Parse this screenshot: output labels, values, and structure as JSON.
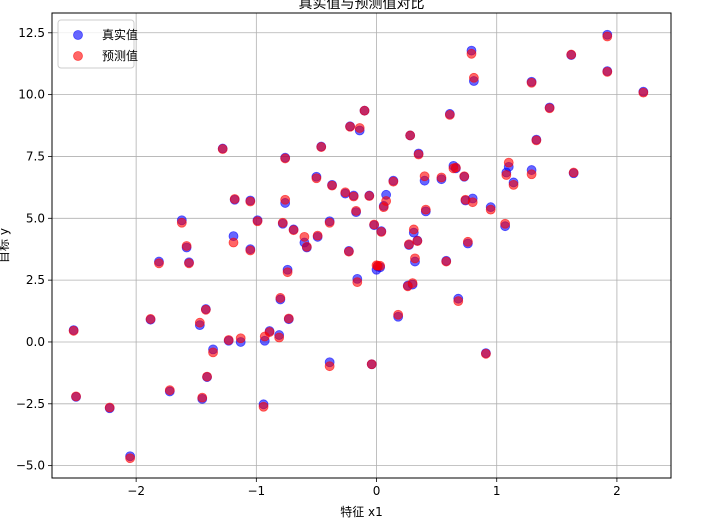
{
  "chart_data": {
    "type": "scatter",
    "title": "真实值与预测值对比",
    "xlabel": "特征 x1",
    "ylabel": "目标 y",
    "xlim": [
      -2.7,
      2.45
    ],
    "ylim": [
      -5.5,
      13.3
    ],
    "xticks": [
      -2,
      -1,
      0,
      1,
      2
    ],
    "yticks": [
      -5.0,
      -2.5,
      0.0,
      2.5,
      5.0,
      7.5,
      10.0,
      12.5
    ],
    "xtick_labels": [
      "−2",
      "−1",
      "0",
      "1",
      "2"
    ],
    "ytick_labels": [
      "−5.0",
      "−2.5",
      "0.0",
      "2.5",
      "5.0",
      "7.5",
      "10.0",
      "12.5"
    ],
    "grid": true,
    "legend_position": "top-left",
    "series": [
      {
        "name": "真实值",
        "color": "#0000ff",
        "alpha": 0.6,
        "points": [
          [
            -2.52,
            0.48
          ],
          [
            -2.5,
            -2.22
          ],
          [
            -2.22,
            -2.68
          ],
          [
            -2.05,
            -4.62
          ],
          [
            -1.88,
            0.9
          ],
          [
            -1.81,
            3.25
          ],
          [
            -1.72,
            -2.0
          ],
          [
            -1.62,
            4.92
          ],
          [
            -1.58,
            3.82
          ],
          [
            -1.56,
            3.22
          ],
          [
            -1.47,
            0.68
          ],
          [
            -1.45,
            -2.3
          ],
          [
            -1.42,
            1.33
          ],
          [
            -1.41,
            -1.42
          ],
          [
            -1.36,
            -0.3
          ],
          [
            -1.28,
            7.82
          ],
          [
            -1.23,
            0.05
          ],
          [
            -1.19,
            4.28
          ],
          [
            -1.18,
            5.75
          ],
          [
            -1.13,
            0.0
          ],
          [
            -1.05,
            5.72
          ],
          [
            -1.05,
            3.75
          ],
          [
            -0.99,
            4.92
          ],
          [
            -0.94,
            -2.52
          ],
          [
            -0.93,
            0.05
          ],
          [
            -0.89,
            0.44
          ],
          [
            -0.81,
            0.28
          ],
          [
            -0.8,
            1.72
          ],
          [
            -0.78,
            4.78
          ],
          [
            -0.76,
            5.62
          ],
          [
            -0.76,
            7.45
          ],
          [
            -0.74,
            2.92
          ],
          [
            -0.73,
            0.92
          ],
          [
            -0.69,
            4.55
          ],
          [
            -0.6,
            4.02
          ],
          [
            -0.58,
            3.82
          ],
          [
            -0.5,
            6.68
          ],
          [
            -0.49,
            4.25
          ],
          [
            -0.46,
            7.9
          ],
          [
            -0.39,
            4.88
          ],
          [
            -0.39,
            -0.82
          ],
          [
            -0.37,
            6.35
          ],
          [
            -0.26,
            6.0
          ],
          [
            -0.23,
            3.68
          ],
          [
            -0.22,
            8.72
          ],
          [
            -0.19,
            5.92
          ],
          [
            -0.17,
            5.25
          ],
          [
            -0.16,
            2.55
          ],
          [
            -0.14,
            8.55
          ],
          [
            -0.1,
            9.35
          ],
          [
            -0.06,
            5.92
          ],
          [
            -0.04,
            -0.9
          ],
          [
            -0.02,
            4.72
          ],
          [
            0.0,
            2.92
          ],
          [
            0.01,
            3.05
          ],
          [
            0.03,
            3.02
          ],
          [
            0.04,
            4.48
          ],
          [
            0.06,
            5.5
          ],
          [
            0.08,
            5.95
          ],
          [
            0.14,
            6.52
          ],
          [
            0.18,
            1.02
          ],
          [
            0.26,
            2.28
          ],
          [
            0.27,
            3.92
          ],
          [
            0.28,
            8.35
          ],
          [
            0.3,
            2.32
          ],
          [
            0.31,
            4.42
          ],
          [
            0.32,
            3.25
          ],
          [
            0.34,
            4.1
          ],
          [
            0.35,
            7.62
          ],
          [
            0.4,
            6.52
          ],
          [
            0.41,
            5.28
          ],
          [
            0.54,
            6.58
          ],
          [
            0.58,
            3.28
          ],
          [
            0.61,
            9.22
          ],
          [
            0.64,
            7.12
          ],
          [
            0.66,
            7.02
          ],
          [
            0.68,
            1.75
          ],
          [
            0.73,
            6.68
          ],
          [
            0.74,
            5.72
          ],
          [
            0.76,
            3.98
          ],
          [
            0.79,
            11.78
          ],
          [
            0.8,
            5.8
          ],
          [
            0.81,
            10.55
          ],
          [
            0.91,
            -0.45
          ],
          [
            0.95,
            5.45
          ],
          [
            1.07,
            4.68
          ],
          [
            1.08,
            6.85
          ],
          [
            1.1,
            7.08
          ],
          [
            1.14,
            6.45
          ],
          [
            1.29,
            10.52
          ],
          [
            1.29,
            6.95
          ],
          [
            1.33,
            8.18
          ],
          [
            1.44,
            9.48
          ],
          [
            1.62,
            11.6
          ],
          [
            1.64,
            6.82
          ],
          [
            1.92,
            12.42
          ],
          [
            1.92,
            10.95
          ],
          [
            2.22,
            10.12
          ]
        ]
      },
      {
        "name": "预测值",
        "color": "#ff0000",
        "alpha": 0.6,
        "points": [
          [
            -2.52,
            0.45
          ],
          [
            -2.5,
            -2.2
          ],
          [
            -2.22,
            -2.65
          ],
          [
            -2.05,
            -4.7
          ],
          [
            -1.88,
            0.93
          ],
          [
            -1.81,
            3.18
          ],
          [
            -1.72,
            -1.95
          ],
          [
            -1.62,
            4.82
          ],
          [
            -1.58,
            3.88
          ],
          [
            -1.56,
            3.18
          ],
          [
            -1.47,
            0.78
          ],
          [
            -1.45,
            -2.25
          ],
          [
            -1.42,
            1.3
          ],
          [
            -1.41,
            -1.4
          ],
          [
            -1.36,
            -0.42
          ],
          [
            -1.28,
            7.8
          ],
          [
            -1.23,
            0.08
          ],
          [
            -1.19,
            4.02
          ],
          [
            -1.18,
            5.78
          ],
          [
            -1.13,
            0.15
          ],
          [
            -1.05,
            5.68
          ],
          [
            -1.05,
            3.7
          ],
          [
            -0.99,
            4.88
          ],
          [
            -0.94,
            -2.62
          ],
          [
            -0.93,
            0.22
          ],
          [
            -0.89,
            0.4
          ],
          [
            -0.81,
            0.18
          ],
          [
            -0.8,
            1.78
          ],
          [
            -0.78,
            4.82
          ],
          [
            -0.76,
            5.75
          ],
          [
            -0.76,
            7.42
          ],
          [
            -0.74,
            2.82
          ],
          [
            -0.73,
            0.95
          ],
          [
            -0.69,
            4.52
          ],
          [
            -0.6,
            4.25
          ],
          [
            -0.58,
            3.85
          ],
          [
            -0.5,
            6.62
          ],
          [
            -0.49,
            4.3
          ],
          [
            -0.46,
            7.88
          ],
          [
            -0.39,
            4.82
          ],
          [
            -0.39,
            -0.98
          ],
          [
            -0.37,
            6.32
          ],
          [
            -0.26,
            6.05
          ],
          [
            -0.23,
            3.65
          ],
          [
            -0.22,
            8.7
          ],
          [
            -0.19,
            5.88
          ],
          [
            -0.17,
            5.3
          ],
          [
            -0.16,
            2.42
          ],
          [
            -0.14,
            8.65
          ],
          [
            -0.1,
            9.35
          ],
          [
            -0.06,
            5.9
          ],
          [
            -0.04,
            -0.9
          ],
          [
            -0.02,
            4.75
          ],
          [
            0.0,
            3.1
          ],
          [
            0.01,
            3.08
          ],
          [
            0.03,
            3.08
          ],
          [
            0.04,
            4.45
          ],
          [
            0.06,
            5.45
          ],
          [
            0.08,
            5.7
          ],
          [
            0.14,
            6.48
          ],
          [
            0.18,
            1.1
          ],
          [
            0.26,
            2.25
          ],
          [
            0.27,
            3.95
          ],
          [
            0.28,
            8.35
          ],
          [
            0.3,
            2.38
          ],
          [
            0.31,
            4.55
          ],
          [
            0.32,
            3.38
          ],
          [
            0.34,
            4.08
          ],
          [
            0.35,
            7.58
          ],
          [
            0.4,
            6.7
          ],
          [
            0.41,
            5.35
          ],
          [
            0.54,
            6.65
          ],
          [
            0.58,
            3.25
          ],
          [
            0.61,
            9.18
          ],
          [
            0.64,
            7.02
          ],
          [
            0.66,
            7.05
          ],
          [
            0.68,
            1.65
          ],
          [
            0.73,
            6.7
          ],
          [
            0.74,
            5.75
          ],
          [
            0.76,
            4.05
          ],
          [
            0.79,
            11.65
          ],
          [
            0.8,
            5.65
          ],
          [
            0.81,
            10.68
          ],
          [
            0.91,
            -0.48
          ],
          [
            0.95,
            5.35
          ],
          [
            1.07,
            4.78
          ],
          [
            1.08,
            6.75
          ],
          [
            1.1,
            7.25
          ],
          [
            1.14,
            6.35
          ],
          [
            1.29,
            10.48
          ],
          [
            1.29,
            6.78
          ],
          [
            1.33,
            8.15
          ],
          [
            1.44,
            9.45
          ],
          [
            1.62,
            11.62
          ],
          [
            1.64,
            6.85
          ],
          [
            1.92,
            12.35
          ],
          [
            1.92,
            10.92
          ],
          [
            2.22,
            10.08
          ]
        ]
      }
    ]
  }
}
